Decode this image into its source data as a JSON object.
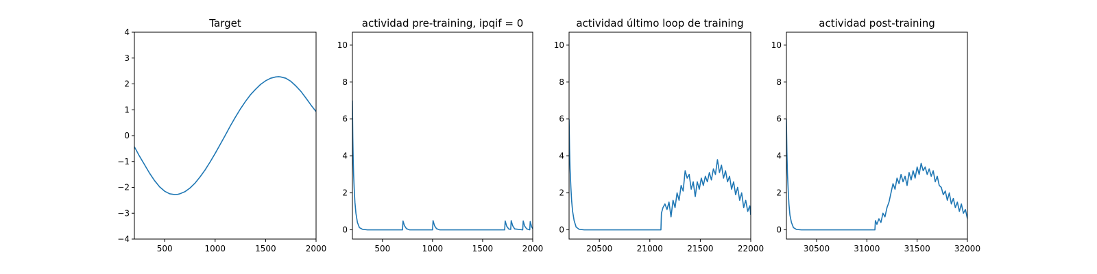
{
  "chart_data": [
    {
      "type": "line",
      "title": "Target",
      "xlim": [
        200,
        2000
      ],
      "ylim": [
        -4,
        4
      ],
      "xticks": [
        500,
        1000,
        1500,
        2000
      ],
      "yticks": [
        -4,
        -3,
        -2,
        -1,
        0,
        1,
        2,
        3,
        4
      ],
      "xlabel": "",
      "ylabel": "",
      "series": [
        {
          "color": "#1f77b4",
          "x": [
            200,
            250,
            300,
            350,
            400,
            450,
            500,
            550,
            600,
            630,
            650,
            700,
            750,
            800,
            850,
            900,
            950,
            1000,
            1050,
            1100,
            1150,
            1200,
            1250,
            1300,
            1350,
            1400,
            1450,
            1500,
            1550,
            1600,
            1630,
            1650,
            1700,
            1750,
            1800,
            1850,
            1900,
            1950,
            2000
          ],
          "y": [
            -0.43,
            -0.79,
            -1.12,
            -1.45,
            -1.74,
            -1.98,
            -2.15,
            -2.25,
            -2.28,
            -2.27,
            -2.25,
            -2.17,
            -2.03,
            -1.84,
            -1.6,
            -1.33,
            -1.02,
            -0.69,
            -0.34,
            0.01,
            0.37,
            0.71,
            1.03,
            1.32,
            1.58,
            1.79,
            1.98,
            2.12,
            2.22,
            2.27,
            2.28,
            2.27,
            2.22,
            2.1,
            1.92,
            1.71,
            1.45,
            1.18,
            0.93
          ]
        }
      ]
    },
    {
      "type": "line",
      "title": "actividad pre-training, ipqif = 0",
      "xlim": [
        200,
        2000
      ],
      "ylim": [
        -0.5,
        10.7
      ],
      "xticks": [
        500,
        1000,
        1500,
        2000
      ],
      "yticks": [
        0,
        2,
        4,
        6,
        8,
        10
      ],
      "xlabel": "",
      "ylabel": "",
      "series": [
        {
          "color": "#1f77b4",
          "x": [
            200,
            204,
            208,
            212,
            218,
            225,
            235,
            250,
            270,
            300,
            350,
            700,
            705,
            720,
            740,
            770,
            1000,
            1005,
            1020,
            1040,
            1070,
            1720,
            1725,
            1740,
            1760,
            1780,
            1785,
            1800,
            1820,
            1900,
            1905,
            1920,
            1940,
            1970,
            1975,
            1990,
            2000
          ],
          "y": [
            7.0,
            5.0,
            3.8,
            3.0,
            2.2,
            1.5,
            0.9,
            0.4,
            0.12,
            0.03,
            0.0,
            0.0,
            0.48,
            0.22,
            0.06,
            0.0,
            0.0,
            0.5,
            0.22,
            0.06,
            0.0,
            0.0,
            0.48,
            0.2,
            0.05,
            0.02,
            0.5,
            0.22,
            0.05,
            0.0,
            0.48,
            0.2,
            0.05,
            0.0,
            0.45,
            0.15,
            0.06
          ]
        }
      ]
    },
    {
      "type": "line",
      "title": "actividad último loop de training",
      "xlim": [
        20200,
        22000
      ],
      "ylim": [
        -0.5,
        10.7
      ],
      "xticks": [
        20500,
        21000,
        21500,
        22000
      ],
      "yticks": [
        0,
        2,
        4,
        6,
        8,
        10
      ],
      "xlabel": "",
      "ylabel": "",
      "series": [
        {
          "color": "#1f77b4",
          "x": [
            20200,
            20205,
            20210,
            20218,
            20225,
            20235,
            20250,
            20270,
            20300,
            20350,
            21110,
            21115,
            21130,
            21150,
            21170,
            21190,
            21210,
            21230,
            21250,
            21270,
            21290,
            21310,
            21330,
            21350,
            21370,
            21390,
            21410,
            21430,
            21450,
            21470,
            21490,
            21510,
            21530,
            21550,
            21570,
            21590,
            21610,
            21630,
            21650,
            21670,
            21690,
            21710,
            21730,
            21750,
            21770,
            21790,
            21810,
            21830,
            21850,
            21870,
            21890,
            21910,
            21930,
            21950,
            21970,
            21990,
            22000
          ],
          "y": [
            6.0,
            4.4,
            3.3,
            2.3,
            1.6,
            1.0,
            0.5,
            0.15,
            0.03,
            0.0,
            0.0,
            0.9,
            1.2,
            1.4,
            1.1,
            1.5,
            0.7,
            1.6,
            1.2,
            2.0,
            1.6,
            2.4,
            2.1,
            3.2,
            2.8,
            3.0,
            2.2,
            2.6,
            1.8,
            2.6,
            2.2,
            2.8,
            2.4,
            2.9,
            2.6,
            3.1,
            2.7,
            3.3,
            3.0,
            3.8,
            3.1,
            3.5,
            2.8,
            3.2,
            2.6,
            2.9,
            2.2,
            2.6,
            1.9,
            2.3,
            1.6,
            2.0,
            1.2,
            1.6,
            1.0,
            1.3,
            0.8
          ]
        }
      ]
    },
    {
      "type": "line",
      "title": "actividad post-training",
      "xlim": [
        30200,
        32000
      ],
      "ylim": [
        -0.5,
        10.7
      ],
      "xticks": [
        30500,
        31000,
        31500,
        32000
      ],
      "yticks": [
        0,
        2,
        4,
        6,
        8,
        10
      ],
      "xlabel": "",
      "ylabel": "",
      "series": [
        {
          "color": "#1f77b4",
          "x": [
            30200,
            30205,
            30210,
            30218,
            30225,
            30235,
            30250,
            30270,
            30300,
            30350,
            31080,
            31085,
            31100,
            31120,
            31140,
            31160,
            31180,
            31200,
            31220,
            31240,
            31260,
            31280,
            31300,
            31320,
            31340,
            31360,
            31380,
            31400,
            31420,
            31440,
            31460,
            31480,
            31500,
            31520,
            31540,
            31560,
            31580,
            31600,
            31620,
            31640,
            31660,
            31680,
            31700,
            31720,
            31740,
            31760,
            31780,
            31800,
            31820,
            31840,
            31860,
            31880,
            31900,
            31920,
            31940,
            31960,
            31980,
            32000
          ],
          "y": [
            6.0,
            4.2,
            3.1,
            2.1,
            1.4,
            0.8,
            0.4,
            0.12,
            0.02,
            0.0,
            0.0,
            0.5,
            0.3,
            0.6,
            0.4,
            0.9,
            0.7,
            1.2,
            1.5,
            2.0,
            2.5,
            2.2,
            2.8,
            2.5,
            3.0,
            2.6,
            2.9,
            2.4,
            3.1,
            2.7,
            3.2,
            2.8,
            3.4,
            3.0,
            3.6,
            3.2,
            3.4,
            3.0,
            3.3,
            2.9,
            3.2,
            2.6,
            2.9,
            2.4,
            2.3,
            1.9,
            2.1,
            1.6,
            2.0,
            1.4,
            1.7,
            1.2,
            1.5,
            1.0,
            1.4,
            0.9,
            1.1,
            0.6
          ]
        }
      ]
    }
  ]
}
